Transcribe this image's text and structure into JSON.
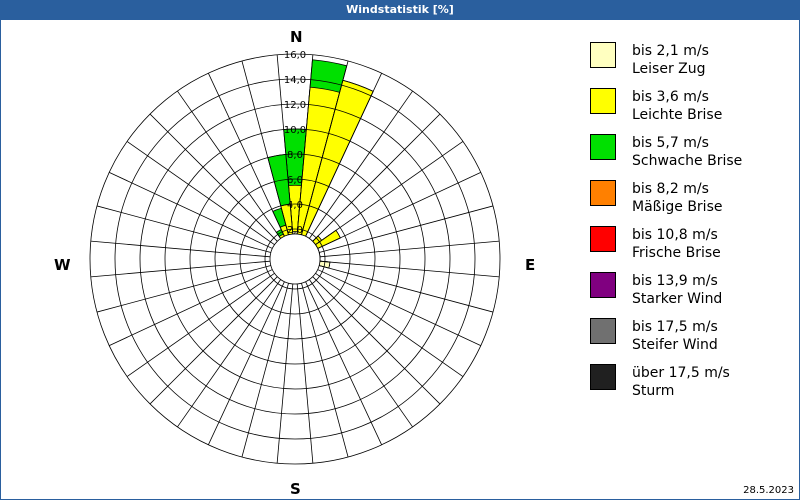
{
  "window": {
    "title": "Windstatistik [%]"
  },
  "compass": {
    "n": "N",
    "e": "E",
    "s": "S",
    "w": "W"
  },
  "date": "28.5.2023",
  "legend": [
    {
      "speed": "bis 2,1 m/s",
      "name": "Leiser Zug",
      "color": "#ffffc0"
    },
    {
      "speed": "bis 3,6 m/s",
      "name": "Leichte Brise",
      "color": "#ffff00"
    },
    {
      "speed": "bis 5,7 m/s",
      "name": "Schwache Brise",
      "color": "#00e000"
    },
    {
      "speed": "bis 8,2 m/s",
      "name": "Mäßige Brise",
      "color": "#ff8000"
    },
    {
      "speed": "bis 10,8 m/s",
      "name": "Frische Brise",
      "color": "#ff0000"
    },
    {
      "speed": "bis 13,9 m/s",
      "name": "Starker Wind",
      "color": "#800080"
    },
    {
      "speed": "bis 17,5 m/s",
      "name": "Steifer Wind",
      "color": "#707070"
    },
    {
      "speed": "über 17,5 m/s",
      "name": "Sturm",
      "color": "#202020"
    }
  ],
  "chart_data": {
    "type": "wind-rose",
    "title": "Windstatistik [%]",
    "unit": "%",
    "rmax": 16.0,
    "ring_labels": [
      "2,0",
      "4,0",
      "6,0",
      "8,0",
      "10,0",
      "12,0",
      "14,0",
      "16,0"
    ],
    "sector_width_deg": 10,
    "series_names": [
      "bis 2,1 m/s",
      "bis 3,6 m/s",
      "bis 5,7 m/s"
    ],
    "sectors": [
      {
        "dir": 0,
        "cumulative": [
          1.8,
          5.5,
          10.0
        ]
      },
      {
        "dir": 10,
        "cumulative": [
          1.2,
          13.4,
          15.6
        ]
      },
      {
        "dir": 20,
        "cumulative": [
          0.8,
          14.4,
          14.4
        ]
      },
      {
        "dir": 30,
        "cumulative": [
          0.4,
          0.4,
          0.4
        ]
      },
      {
        "dir": 40,
        "cumulative": [
          0.6,
          1.2,
          1.2
        ]
      },
      {
        "dir": 50,
        "cumulative": [
          0.8,
          2.2,
          2.2
        ]
      },
      {
        "dir": 60,
        "cumulative": [
          0.8,
          3.6,
          3.6
        ]
      },
      {
        "dir": 70,
        "cumulative": [
          0.6,
          1.6,
          1.6
        ]
      },
      {
        "dir": 80,
        "cumulative": [
          0.5,
          0.5,
          0.5
        ]
      },
      {
        "dir": 90,
        "cumulative": [
          0.3,
          0.3,
          0.3
        ]
      },
      {
        "dir": 100,
        "cumulative": [
          2.4,
          2.4,
          2.4
        ]
      },
      {
        "dir": 330,
        "cumulative": [
          0.6,
          1.8,
          2.2
        ]
      },
      {
        "dir": 340,
        "cumulative": [
          0.8,
          2.4,
          3.8
        ]
      },
      {
        "dir": 350,
        "cumulative": [
          1.2,
          4.0,
          8.0
        ]
      }
    ]
  }
}
